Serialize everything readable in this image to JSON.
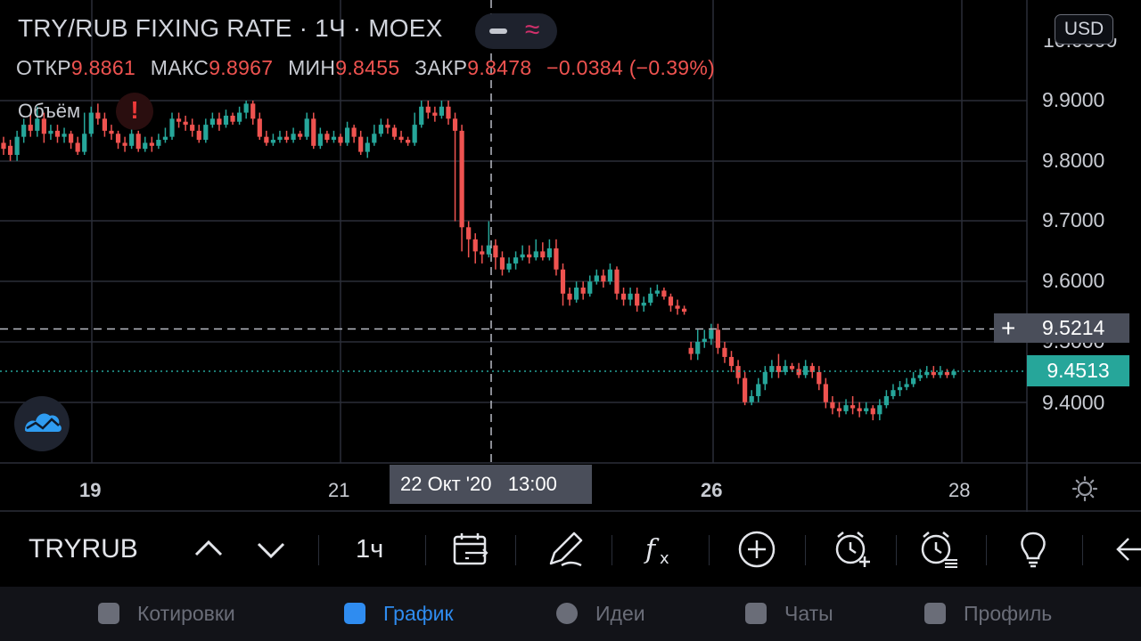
{
  "header": {
    "title": "TRY/RUB FIXING RATE · 1Ч · MOEX",
    "currency": "USD",
    "volume_label": "Объём",
    "alert_icon_text": "!",
    "toggle_wave": "≈"
  },
  "ohlc": {
    "open_label": "ОТКР",
    "open": "9.8861",
    "high_label": "МАКС",
    "high": "9.8967",
    "low_label": "МИН",
    "low": "9.8455",
    "close_label": "ЗАКР",
    "close": "9.8478",
    "change": "−0.0384 (−0.39%)"
  },
  "price_axis": {
    "top_partial": "10.0000",
    "labels": [
      "9.9000",
      "9.8000",
      "9.7000",
      "9.6000",
      "9.5000",
      "9.4000"
    ],
    "crosshair_plus": "+",
    "crosshair_value": "9.5214",
    "last_value": "9.4513"
  },
  "time_axis": {
    "labels": [
      "19",
      "21",
      "26",
      "28"
    ],
    "cursor_label": "22 Окт '20   13:00"
  },
  "chart_data": {
    "type": "candlestick",
    "y_range": [
      9.3,
      10.0
    ],
    "crosshair_price": 9.5214,
    "last_price": 9.4513,
    "candles": [
      [
        9.83,
        9.82,
        9.84,
        9.81
      ],
      [
        9.825,
        9.81,
        9.835,
        9.8
      ],
      [
        9.81,
        9.84,
        9.85,
        9.8
      ],
      [
        9.84,
        9.86,
        9.87,
        9.83
      ],
      [
        9.86,
        9.85,
        9.88,
        9.84
      ],
      [
        9.85,
        9.87,
        9.89,
        9.84
      ],
      [
        9.87,
        9.845,
        9.88,
        9.83
      ],
      [
        9.845,
        9.85,
        9.86,
        9.835
      ],
      [
        9.85,
        9.84,
        9.86,
        9.83
      ],
      [
        9.84,
        9.845,
        9.855,
        9.83
      ],
      [
        9.845,
        9.83,
        9.85,
        9.82
      ],
      [
        9.83,
        9.815,
        9.84,
        9.81
      ],
      [
        9.815,
        9.845,
        9.88,
        9.81
      ],
      [
        9.845,
        9.88,
        9.89,
        9.84
      ],
      [
        9.88,
        9.87,
        9.895,
        9.86
      ],
      [
        9.87,
        9.85,
        9.88,
        9.84
      ],
      [
        9.85,
        9.845,
        9.86,
        9.835
      ],
      [
        9.845,
        9.83,
        9.85,
        9.82
      ],
      [
        9.83,
        9.825,
        9.84,
        9.815
      ],
      [
        9.825,
        9.845,
        9.855,
        9.82
      ],
      [
        9.845,
        9.82,
        9.85,
        9.815
      ],
      [
        9.82,
        9.83,
        9.84,
        9.815
      ],
      [
        9.83,
        9.825,
        9.84,
        9.815
      ],
      [
        9.825,
        9.835,
        9.845,
        9.82
      ],
      [
        9.835,
        9.84,
        9.855,
        9.83
      ],
      [
        9.84,
        9.87,
        9.88,
        9.835
      ],
      [
        9.87,
        9.865,
        9.88,
        9.855
      ],
      [
        9.865,
        9.86,
        9.875,
        9.85
      ],
      [
        9.86,
        9.85,
        9.87,
        9.84
      ],
      [
        9.85,
        9.835,
        9.86,
        9.83
      ],
      [
        9.835,
        9.86,
        9.87,
        9.83
      ],
      [
        9.86,
        9.87,
        9.88,
        9.855
      ],
      [
        9.87,
        9.86,
        9.88,
        9.85
      ],
      [
        9.86,
        9.875,
        9.885,
        9.855
      ],
      [
        9.875,
        9.865,
        9.88,
        9.86
      ],
      [
        9.865,
        9.88,
        9.89,
        9.86
      ],
      [
        9.88,
        9.895,
        9.9,
        9.87
      ],
      [
        9.895,
        9.87,
        9.9,
        9.86
      ],
      [
        9.87,
        9.84,
        9.88,
        9.835
      ],
      [
        9.84,
        9.83,
        9.85,
        9.825
      ],
      [
        9.83,
        9.835,
        9.845,
        9.825
      ],
      [
        9.835,
        9.84,
        9.85,
        9.83
      ],
      [
        9.84,
        9.835,
        9.85,
        9.83
      ],
      [
        9.835,
        9.845,
        9.855,
        9.83
      ],
      [
        9.845,
        9.84,
        9.85,
        9.835
      ],
      [
        9.84,
        9.87,
        9.88,
        9.835
      ],
      [
        9.87,
        9.825,
        9.88,
        9.82
      ],
      [
        9.825,
        9.845,
        9.855,
        9.82
      ],
      [
        9.845,
        9.835,
        9.85,
        9.83
      ],
      [
        9.835,
        9.84,
        9.85,
        9.83
      ],
      [
        9.84,
        9.83,
        9.845,
        9.825
      ],
      [
        9.83,
        9.855,
        9.865,
        9.825
      ],
      [
        9.855,
        9.84,
        9.86,
        9.83
      ],
      [
        9.84,
        9.815,
        9.85,
        9.81
      ],
      [
        9.815,
        9.83,
        9.84,
        9.805
      ],
      [
        9.83,
        9.845,
        9.86,
        9.825
      ],
      [
        9.845,
        9.86,
        9.87,
        9.84
      ],
      [
        9.86,
        9.855,
        9.87,
        9.845
      ],
      [
        9.855,
        9.84,
        9.86,
        9.835
      ],
      [
        9.84,
        9.835,
        9.85,
        9.83
      ],
      [
        9.835,
        9.83,
        9.84,
        9.825
      ],
      [
        9.83,
        9.86,
        9.88,
        9.825
      ],
      [
        9.86,
        9.89,
        9.9,
        9.855
      ],
      [
        9.89,
        9.88,
        9.9,
        9.87
      ],
      [
        9.88,
        9.875,
        9.89,
        9.865
      ],
      [
        9.875,
        9.89,
        9.9,
        9.87
      ],
      [
        9.89,
        9.87,
        9.9,
        9.86
      ],
      [
        9.87,
        9.85,
        9.88,
        9.7
      ],
      [
        9.85,
        9.69,
        9.86,
        9.65
      ],
      [
        9.69,
        9.67,
        9.7,
        9.64
      ],
      [
        9.67,
        9.65,
        9.68,
        9.63
      ],
      [
        9.65,
        9.645,
        9.66,
        9.63
      ],
      [
        9.645,
        9.66,
        9.7,
        9.64
      ],
      [
        9.66,
        9.64,
        9.67,
        9.62
      ],
      [
        9.64,
        9.62,
        9.65,
        9.61
      ],
      [
        9.62,
        9.63,
        9.64,
        9.615
      ],
      [
        9.63,
        9.64,
        9.65,
        9.62
      ],
      [
        9.64,
        9.645,
        9.66,
        9.635
      ],
      [
        9.645,
        9.64,
        9.66,
        9.63
      ],
      [
        9.64,
        9.65,
        9.67,
        9.635
      ],
      [
        9.65,
        9.64,
        9.665,
        9.635
      ],
      [
        9.64,
        9.655,
        9.67,
        9.635
      ],
      [
        9.655,
        9.62,
        9.67,
        9.61
      ],
      [
        9.62,
        9.58,
        9.63,
        9.56
      ],
      [
        9.58,
        9.57,
        9.59,
        9.56
      ],
      [
        9.57,
        9.59,
        9.6,
        9.565
      ],
      [
        9.59,
        9.58,
        9.6,
        9.57
      ],
      [
        9.58,
        9.6,
        9.61,
        9.575
      ],
      [
        9.6,
        9.61,
        9.62,
        9.595
      ],
      [
        9.61,
        9.6,
        9.62,
        9.59
      ],
      [
        9.6,
        9.62,
        9.63,
        9.595
      ],
      [
        9.62,
        9.58,
        9.625,
        9.57
      ],
      [
        9.58,
        9.57,
        9.59,
        9.56
      ],
      [
        9.57,
        9.58,
        9.59,
        9.56
      ],
      [
        9.58,
        9.56,
        9.59,
        9.55
      ],
      [
        9.56,
        9.565,
        9.575,
        9.55
      ],
      [
        9.565,
        9.58,
        9.59,
        9.56
      ],
      [
        9.58,
        9.585,
        9.595,
        9.575
      ],
      [
        9.585,
        9.575,
        9.59,
        9.57
      ],
      [
        9.575,
        9.56,
        9.58,
        9.55
      ],
      [
        9.56,
        9.555,
        9.57,
        9.545
      ],
      [
        9.555,
        9.55,
        9.56,
        9.545
      ],
      [
        9.49,
        9.48,
        9.5,
        9.47
      ],
      [
        9.48,
        9.5,
        9.52,
        9.47
      ],
      [
        9.5,
        9.505,
        9.52,
        9.49
      ],
      [
        9.505,
        9.52,
        9.53,
        9.495
      ],
      [
        9.52,
        9.49,
        9.53,
        9.48
      ],
      [
        9.49,
        9.475,
        9.5,
        9.465
      ],
      [
        9.475,
        9.46,
        9.485,
        9.45
      ],
      [
        9.46,
        9.44,
        9.47,
        9.43
      ],
      [
        9.44,
        9.4,
        9.45,
        9.395
      ],
      [
        9.4,
        9.41,
        9.42,
        9.395
      ],
      [
        9.41,
        9.43,
        9.44,
        9.4
      ],
      [
        9.43,
        9.45,
        9.46,
        9.42
      ],
      [
        9.45,
        9.46,
        9.47,
        9.44
      ],
      [
        9.46,
        9.45,
        9.48,
        9.44
      ],
      [
        9.45,
        9.46,
        9.47,
        9.445
      ],
      [
        9.46,
        9.455,
        9.465,
        9.45
      ],
      [
        9.455,
        9.445,
        9.465,
        9.44
      ],
      [
        9.445,
        9.46,
        9.47,
        9.44
      ],
      [
        9.46,
        9.45,
        9.465,
        9.44
      ],
      [
        9.45,
        9.43,
        9.46,
        9.42
      ],
      [
        9.43,
        9.4,
        9.44,
        9.39
      ],
      [
        9.4,
        9.39,
        9.41,
        9.38
      ],
      [
        9.39,
        9.385,
        9.4,
        9.375
      ],
      [
        9.385,
        9.395,
        9.405,
        9.38
      ],
      [
        9.395,
        9.39,
        9.41,
        9.38
      ],
      [
        9.39,
        9.385,
        9.4,
        9.375
      ],
      [
        9.385,
        9.39,
        9.4,
        9.38
      ],
      [
        9.39,
        9.38,
        9.395,
        9.37
      ],
      [
        9.38,
        9.395,
        9.405,
        9.37
      ],
      [
        9.395,
        9.41,
        9.42,
        9.39
      ],
      [
        9.41,
        9.42,
        9.43,
        9.405
      ],
      [
        9.42,
        9.425,
        9.435,
        9.41
      ],
      [
        9.425,
        9.43,
        9.44,
        9.42
      ],
      [
        9.43,
        9.44,
        9.45,
        9.425
      ],
      [
        9.44,
        9.445,
        9.455,
        9.435
      ],
      [
        9.445,
        9.45,
        9.46,
        9.44
      ],
      [
        9.45,
        9.445,
        9.46,
        9.44
      ],
      [
        9.445,
        9.45,
        9.46,
        9.44
      ],
      [
        9.45,
        9.445,
        9.455,
        9.44
      ],
      [
        9.445,
        9.451,
        9.455,
        9.44
      ]
    ]
  },
  "toolbar": {
    "symbol": "TRYRUB",
    "interval": "1ч"
  },
  "nav": {
    "items": [
      "Котировки",
      "График",
      "Идеи",
      "Чаты",
      "Профиль"
    ]
  },
  "colors": {
    "up": "#26a69a",
    "down": "#ef5350",
    "active": "#2f8cf0",
    "grid": "#2a2e39"
  }
}
